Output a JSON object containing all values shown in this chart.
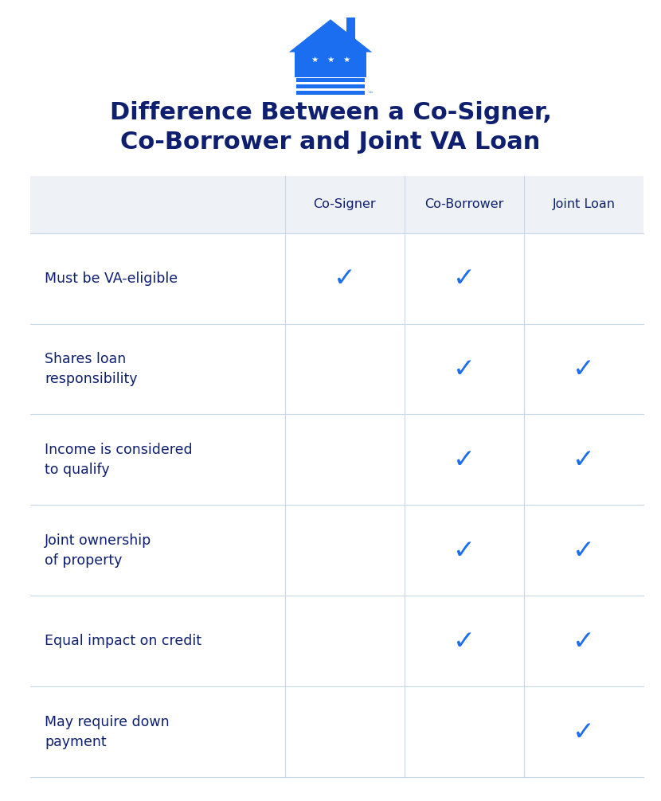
{
  "title_line1": "Difference Between a Co-Signer,",
  "title_line2": "Co-Borrower and Joint VA Loan",
  "title_color": "#0d1f6e",
  "background_color": "#ffffff",
  "header_bg_color": "#eef2f7",
  "col_headers": [
    "Co-Signer",
    "Co-Borrower",
    "Joint Loan"
  ],
  "col_header_color": "#0d1f6e",
  "rows": [
    "Must be VA-eligible",
    "Shares loan\nresponsibility",
    "Income is considered\nto qualify",
    "Joint ownership\nof property",
    "Equal impact on credit",
    "May require down\npayment"
  ],
  "row_text_color": "#0d1f6e",
  "checks": [
    [
      true,
      true,
      false
    ],
    [
      false,
      true,
      true
    ],
    [
      false,
      true,
      true
    ],
    [
      false,
      true,
      true
    ],
    [
      false,
      true,
      true
    ],
    [
      false,
      false,
      true
    ]
  ],
  "check_color": "#1a6eef",
  "grid_line_color": "#c8d8ea",
  "logo_color": "#1a6eef",
  "fig_width": 8.3,
  "fig_height": 10.06,
  "dpi": 100
}
